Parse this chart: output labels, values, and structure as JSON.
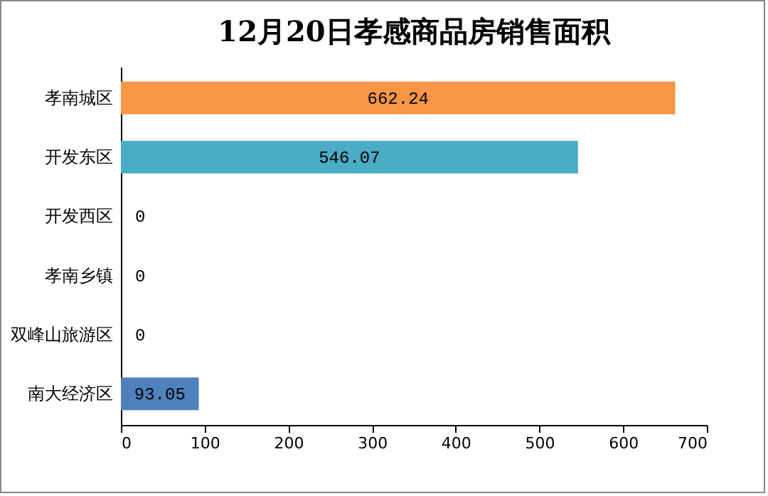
{
  "chart_data": {
    "type": "bar",
    "orientation": "horizontal",
    "title": "12月20日孝感商品房销售面积",
    "categories": [
      "孝南城区",
      "开发东区",
      "开发西区",
      "孝南乡镇",
      "双峰山旅游区",
      "南大经济区"
    ],
    "values": [
      662.24,
      546.07,
      0,
      0,
      0,
      93.05
    ],
    "colors": [
      "#f79646",
      "#4bacc6",
      "#4f81bd",
      "#4f81bd",
      "#4f81bd",
      "#4f81bd"
    ],
    "xlim": [
      0,
      700
    ],
    "xticks": [
      0,
      100,
      200,
      300,
      400,
      500,
      600,
      700
    ],
    "data_labels": true,
    "grid": false
  }
}
